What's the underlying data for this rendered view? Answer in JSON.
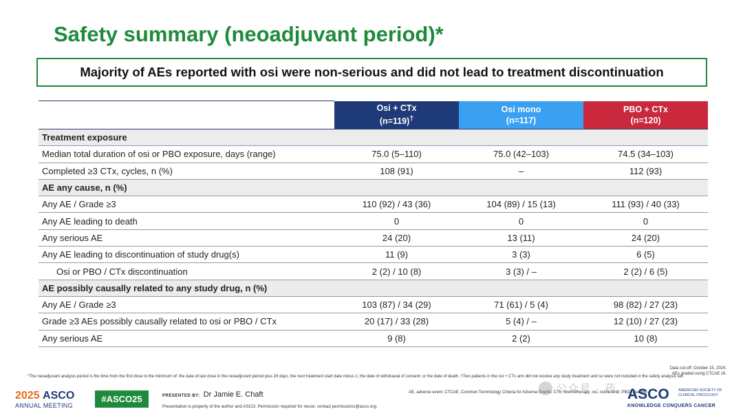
{
  "title": "Safety summary (neoadjuvant period)*",
  "key_message": "Majority of AEs reported with osi were non-serious and did not lead to treatment discontinuation",
  "columns": [
    {
      "line1": "Osi + CTx",
      "line2": "(n=119)",
      "sup": "†"
    },
    {
      "line1": "Osi mono",
      "line2": "(n=117)",
      "sup": ""
    },
    {
      "line1": "PBO + CTx",
      "line2": "(n=120)",
      "sup": ""
    }
  ],
  "rows": [
    {
      "label": "Treatment exposure",
      "section": true
    },
    {
      "label": "Median total duration of osi or PBO exposure, days (range)",
      "values": [
        "75.0 (5–110)",
        "75.0 (42–103)",
        "74.5 (34–103)"
      ]
    },
    {
      "label": "Completed ≥3 CTx, cycles, n (%)",
      "values": [
        "108 (91)",
        "–",
        "112 (93)"
      ]
    },
    {
      "label": "AE any cause, n (%)",
      "section": true
    },
    {
      "label": "Any AE / Grade ≥3",
      "values": [
        "110 (92) / 43 (36)",
        "104 (89) / 15 (13)",
        "111 (93) / 40 (33)"
      ]
    },
    {
      "label": "Any AE leading to death",
      "values": [
        "0",
        "0",
        "0"
      ]
    },
    {
      "label": "Any serious AE",
      "values": [
        "24 (20)",
        "13 (11)",
        "24 (20)"
      ]
    },
    {
      "label": "Any AE leading to discontinuation of study drug(s)",
      "values": [
        "11 (9)",
        "3 (3)",
        "6 (5)"
      ]
    },
    {
      "label": "Osi or PBO / CTx discontinuation",
      "values": [
        "2 (2) / 10 (8)",
        "3 (3) / –",
        "2 (2) / 6 (5)"
      ],
      "indent": true
    },
    {
      "label": "AE possibly causally related to any study drug,  n (%)",
      "section": true
    },
    {
      "label": "Any AE / Grade ≥3",
      "values": [
        "103 (87) / 34 (29)",
        "71 (61) / 5 (4)",
        "98 (82) / 27 (23)"
      ]
    },
    {
      "label": "Grade ≥3 AEs possibly causally related to osi or PBO / CTx",
      "values": [
        "20 (17) / 33 (28)",
        "5 (4) / –",
        "12 (10) / 27 (23)"
      ]
    },
    {
      "label": "Any serious AE",
      "values": [
        "9 (8)",
        "2 (2)",
        "10 (8)"
      ]
    }
  ],
  "footnote": "*The neoadjuvant analysis period is the time from the first dose to the minimum of: the date of last dose in the neoadjuvant period plus 28 days; the next treatment start date minus 1; the date of withdrawal of consent; or the date of death. †Two patients in the osi + CTx arm did not receive any study treatment and so were not included in the safety analysis set.",
  "cutoff": [
    "Data cut-off: October 15, 2024.",
    "AEs graded using CTCAE v5."
  ],
  "abbreviations": "AE, adverse event; CTCAE, Common Terminology Criteria for Adverse Events; CTx, chemotherapy; osi, osimertinib; PBO, placebo",
  "footer": {
    "meeting_year": "2025",
    "meeting_org": "ASCO",
    "meeting_label": "ANNUAL MEETING",
    "hashtag": "#ASCO25",
    "presented_by_label": "PRESENTED BY:",
    "presenter": "Dr Jamie E. Chaft",
    "property_notice": "Presentation is property of the author and ASCO. Permission required for reuse; contact permissions@asco.org.",
    "asco_logo": "ASCO",
    "asco_side": "AMERICAN SOCIETY OF CLINICAL ONCOLOGY",
    "asco_tagline": "KNOWLEDGE CONQUERS CANCER"
  },
  "watermark": "公众号 · 药",
  "colors": {
    "title_green": "#1f8a3c",
    "osi_ctx": "#1e3a78",
    "osi_mono": "#3aa0f2",
    "pbo_ctx": "#c9283d"
  }
}
